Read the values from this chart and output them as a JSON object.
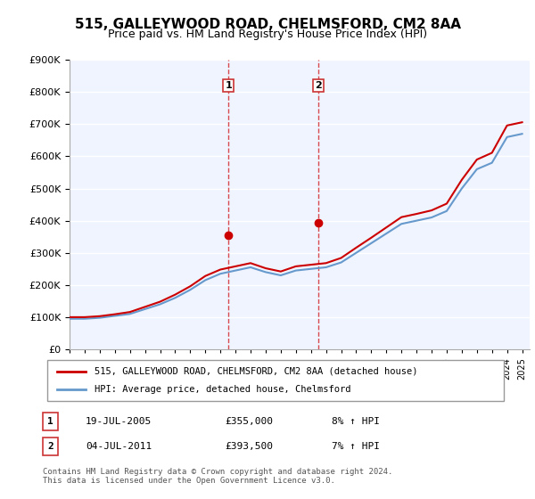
{
  "title": "515, GALLEYWOOD ROAD, CHELMSFORD, CM2 8AA",
  "subtitle": "Price paid vs. HM Land Registry's House Price Index (HPI)",
  "legend_line1": "515, GALLEYWOOD ROAD, CHELMSFORD, CM2 8AA (detached house)",
  "legend_line2": "HPI: Average price, detached house, Chelmsford",
  "footer": "Contains HM Land Registry data © Crown copyright and database right 2024.\nThis data is licensed under the Open Government Licence v3.0.",
  "table_rows": [
    {
      "num": "1",
      "date": "19-JUL-2005",
      "price": "£355,000",
      "hpi": "8% ↑ HPI"
    },
    {
      "num": "2",
      "date": "04-JUL-2011",
      "price": "£393,500",
      "hpi": "7% ↑ HPI"
    }
  ],
  "marker1_x": 2005.54,
  "marker1_y": 355000,
  "marker2_x": 2011.5,
  "marker2_y": 393500,
  "vline1_x": 2005.54,
  "vline2_x": 2011.5,
  "red_color": "#cc0000",
  "blue_color": "#6699cc",
  "vline_color": "#cc0000",
  "bg_color": "#ffffff",
  "plot_bg_color": "#f0f4ff",
  "grid_color": "#ffffff",
  "ylim": [
    0,
    900000
  ],
  "xlim": [
    1995,
    2025.5
  ],
  "hpi_data_x": [
    1995,
    1996,
    1997,
    1998,
    1999,
    2000,
    2001,
    2002,
    2003,
    2004,
    2005,
    2006,
    2007,
    2008,
    2009,
    2010,
    2011,
    2012,
    2013,
    2014,
    2015,
    2016,
    2017,
    2018,
    2019,
    2020,
    2021,
    2022,
    2023,
    2024,
    2025
  ],
  "hpi_data_y": [
    95000,
    95000,
    98000,
    104000,
    110000,
    125000,
    140000,
    160000,
    185000,
    215000,
    235000,
    245000,
    255000,
    240000,
    230000,
    245000,
    250000,
    255000,
    270000,
    300000,
    330000,
    360000,
    390000,
    400000,
    410000,
    430000,
    500000,
    560000,
    580000,
    660000,
    670000
  ],
  "red_data_x": [
    1995,
    1996,
    1997,
    1998,
    1999,
    2000,
    2001,
    2002,
    2003,
    2004,
    2005,
    2006,
    2007,
    2008,
    2009,
    2010,
    2011,
    2012,
    2013,
    2014,
    2015,
    2016,
    2017,
    2018,
    2019,
    2020,
    2021,
    2022,
    2023,
    2024,
    2025
  ],
  "red_data_y": [
    100000,
    100000,
    103000,
    109000,
    116000,
    132000,
    148000,
    170000,
    196000,
    228000,
    248000,
    258000,
    268000,
    252000,
    242000,
    258000,
    263000,
    268000,
    284000,
    316000,
    347000,
    379000,
    411000,
    421000,
    432000,
    453000,
    527000,
    590000,
    611000,
    696000,
    706000
  ]
}
